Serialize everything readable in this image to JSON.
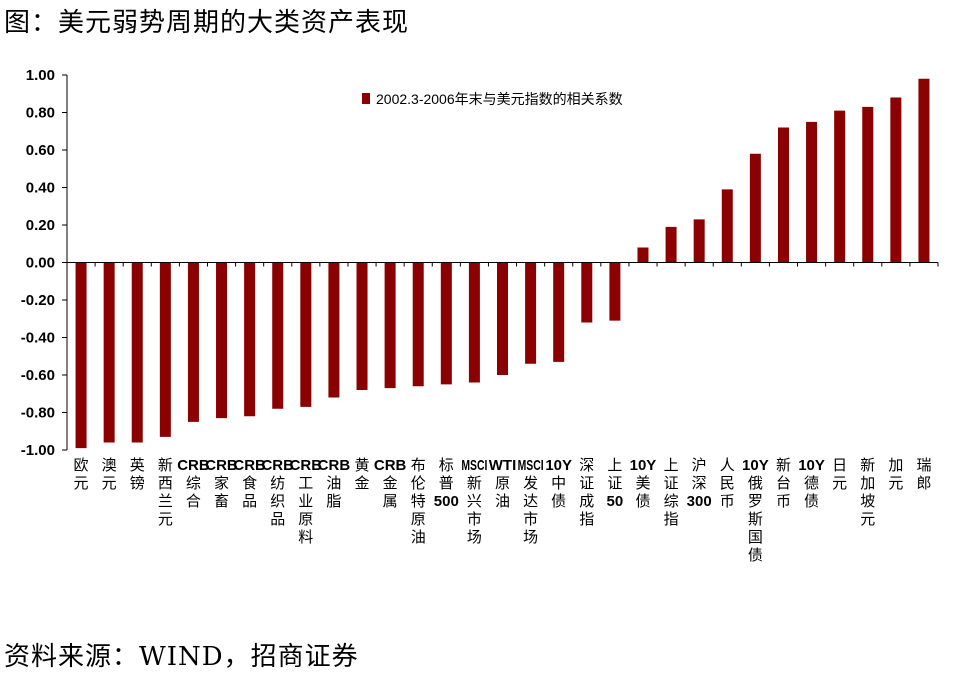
{
  "figure": {
    "title": "图：美元弱势周期的大类资产表现",
    "source": "资料来源：WIND，招商证券"
  },
  "colors": {
    "bar": "#8b0000",
    "axis": "#000000"
  },
  "chart_data": {
    "type": "bar",
    "title": "",
    "xlabel": "",
    "ylabel": "",
    "ylim": [
      -1.0,
      1.0
    ],
    "yticks": [
      "1.00",
      "0.80",
      "0.60",
      "0.40",
      "0.20",
      "0.00",
      "-0.20",
      "-0.40",
      "-0.60",
      "-0.80",
      "-1.00"
    ],
    "legend": {
      "position": "top",
      "entries": [
        "2002.3-2006年末与美元指数的相关系数"
      ]
    },
    "grid": false,
    "categories": [
      "欧元",
      "澳元",
      "英镑",
      "新西兰元",
      "CRB综合",
      "CRB家畜",
      "CRB食品",
      "CRB纺织品",
      "CRB工业原料",
      "CRB油脂",
      "黄金",
      "CRB金属",
      "布伦特原油",
      "标普500",
      "MSCI新兴市场",
      "WTI原油",
      "MSCI发达市场",
      "10Y中债",
      "深证成指",
      "上证50",
      "10Y美债",
      "上证综指",
      "沪深300",
      "人民币",
      "10Y俄罗斯国债",
      "新台币",
      "10Y德债",
      "日元",
      "新加坡元",
      "加元",
      "瑞郎"
    ],
    "series": [
      {
        "name": "2002.3-2006年末与美元指数的相关系数",
        "values": [
          -0.99,
          -0.96,
          -0.96,
          -0.93,
          -0.85,
          -0.83,
          -0.82,
          -0.78,
          -0.77,
          -0.72,
          -0.68,
          -0.67,
          -0.66,
          -0.65,
          -0.64,
          -0.6,
          -0.54,
          -0.53,
          -0.32,
          -0.31,
          0.08,
          0.19,
          0.23,
          0.39,
          0.58,
          0.72,
          0.75,
          0.81,
          0.83,
          0.88,
          0.98
        ]
      }
    ]
  }
}
